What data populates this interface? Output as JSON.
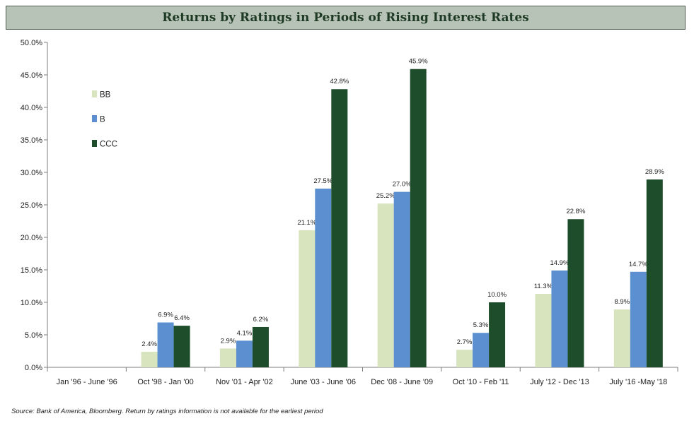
{
  "chart_data": {
    "type": "bar",
    "title": "Returns by Ratings in Periods of Rising Interest Rates",
    "categories": [
      "Jan '96 - June '96",
      "Oct '98 - Jan '00",
      "Nov '01 - Apr '02",
      "June '03 - June '06",
      "Dec '08 - June '09",
      "Oct '10 - Feb '11",
      "July '12 - Dec '13",
      "July '16 -May '18"
    ],
    "series": [
      {
        "name": "BB",
        "color": "#d7e4bd",
        "values": [
          null,
          2.4,
          2.9,
          21.1,
          25.2,
          2.7,
          11.3,
          8.9
        ],
        "labels": [
          "",
          "2.4%",
          "2.9%",
          "21.1%",
          "25.2%",
          "2.7%",
          "11.3%",
          "8.9%"
        ]
      },
      {
        "name": "B",
        "color": "#5b8fcf",
        "values": [
          null,
          6.9,
          4.1,
          27.5,
          27.0,
          5.3,
          14.9,
          14.7
        ],
        "labels": [
          "",
          "6.9%",
          "4.1%",
          "27.5%",
          "27.0%",
          "5.3%",
          "14.9%",
          "14.7%"
        ]
      },
      {
        "name": "CCC",
        "color": "#1e4d2b",
        "values": [
          null,
          6.4,
          6.2,
          42.8,
          45.9,
          10.0,
          22.8,
          28.9
        ],
        "labels": [
          "",
          "6.4%",
          "6.2%",
          "42.8%",
          "45.9%",
          "10.0%",
          "22.8%",
          "28.9%"
        ]
      }
    ],
    "ylim": [
      0,
      50
    ],
    "yticks": [
      0,
      5,
      10,
      15,
      20,
      25,
      30,
      35,
      40,
      45,
      50
    ],
    "ytick_labels": [
      "0.0%",
      "5.0%",
      "10.0%",
      "15.0%",
      "20.0%",
      "25.0%",
      "30.0%",
      "35.0%",
      "40.0%",
      "45.0%",
      "50.0%"
    ],
    "legend_position": "top-left",
    "grid": false
  },
  "source_note": "Source: Bank of America, Bloomberg. Return by ratings information is not available for the earliest period"
}
